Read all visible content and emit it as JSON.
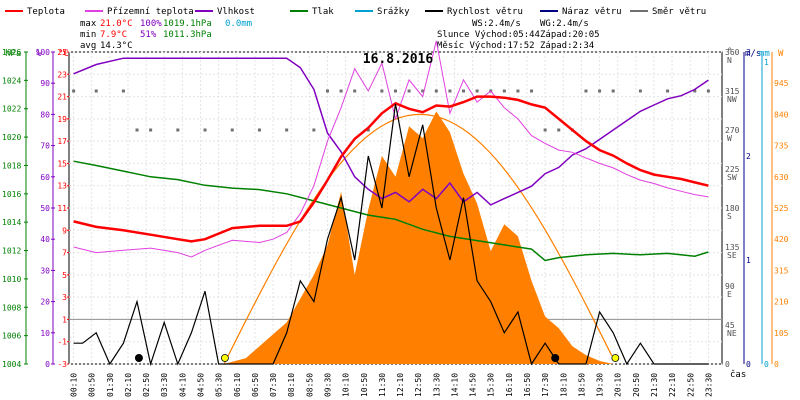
{
  "legend": [
    {
      "label": "Teplota",
      "color": "#ff0000"
    },
    {
      "label": "Přízemní teplota",
      "color": "#e040e0"
    },
    {
      "label": "Vlhkost",
      "color": "#8000c0"
    },
    {
      "label": "Tlak",
      "color": "#008000"
    },
    {
      "label": "Srážky",
      "color": "#00a0d0"
    },
    {
      "label": "Rychlost větru",
      "color": "#000000"
    },
    {
      "label": "Náraz větru",
      "color": "#000080"
    },
    {
      "label": "Směr větru",
      "color": "#707070"
    }
  ],
  "stats": {
    "max": {
      "label": "max",
      "temp": "21.0°C",
      "hum": "100%",
      "press": "1019.1hPa",
      "rain": "0.0mm"
    },
    "min": {
      "label": "min",
      "temp": "7.9°C",
      "hum": "51%",
      "press": "1011.3hPa"
    },
    "avg": {
      "label": "avg",
      "temp": "14.3°C"
    }
  },
  "info": {
    "ws": "WS:2.4m/s",
    "wg": "WG:2.4m/s",
    "slunce": "Slunce Východ:05:44",
    "slunce_zapad": "Západ:20:05",
    "mesic": "Měsíc Východ:17:52",
    "mesic_zapad": "Západ:2:34"
  },
  "date": "16.8.2016",
  "axis_units": {
    "hpa": "hPa",
    "pct": "%",
    "degc": "°C",
    "deg": "°",
    "ms": "m/s",
    "mm": "mm",
    "w": "W",
    "time": "čas"
  },
  "pressure_ticks": [
    "1026",
    "1024",
    "1022",
    "1020",
    "1018",
    "1016",
    "1014",
    "1012",
    "1010",
    "1008",
    "1006",
    "1004"
  ],
  "humidity_ticks": [
    "100",
    "90",
    "80",
    "70",
    "60",
    "50",
    "40",
    "30",
    "20",
    "10",
    "0"
  ],
  "temp_ticks": [
    "25",
    "23",
    "21",
    "19",
    "17",
    "15",
    "13",
    "11",
    "9",
    "7",
    "5",
    "3",
    "1",
    "-1",
    "-3"
  ],
  "direction_ticks": [
    {
      "deg": "360",
      "dir": "N"
    },
    {
      "deg": "315",
      "dir": "NW"
    },
    {
      "deg": "270",
      "dir": "W"
    },
    {
      "deg": "225",
      "dir": "SW"
    },
    {
      "deg": "180",
      "dir": "S"
    },
    {
      "deg": "135",
      "dir": "SE"
    },
    {
      "deg": "90",
      "dir": "E"
    },
    {
      "deg": "45",
      "dir": "NE"
    },
    {
      "deg": "0",
      "dir": ""
    }
  ],
  "wind_ticks": [
    "3",
    "2",
    "1",
    "0"
  ],
  "rain_ticks": [
    "1",
    "0"
  ],
  "solar_ticks": [
    "945",
    "840",
    "735",
    "630",
    "525",
    "420",
    "315",
    "210",
    "105",
    "0"
  ],
  "chart_data": {
    "type": "line",
    "title": "16.8.2016",
    "x_unit": "hours",
    "x_ticks": [
      "00:10",
      "00:50",
      "01:30",
      "02:10",
      "02:50",
      "03:30",
      "04:10",
      "04:50",
      "05:30",
      "06:10",
      "06:50",
      "07:30",
      "08:10",
      "08:50",
      "09:30",
      "10:10",
      "10:50",
      "11:30",
      "12:10",
      "12:50",
      "13:30",
      "14:10",
      "14:50",
      "15:30",
      "16:10",
      "16:50",
      "17:30",
      "18:10",
      "18:50",
      "19:30",
      "20:10",
      "20:50",
      "21:30",
      "22:10",
      "22:50",
      "23:30"
    ],
    "series": [
      {
        "name": "Teplota",
        "color": "#ff0000",
        "axis": "temp",
        "x": [
          0.17,
          1,
          2,
          3,
          4,
          4.5,
          5,
          6,
          7,
          7.5,
          8,
          8.5,
          9,
          9.5,
          10,
          10.5,
          11,
          11.5,
          12,
          12.5,
          13,
          13.5,
          14,
          14.5,
          15,
          15.5,
          16,
          16.5,
          17,
          17.5,
          18,
          18.5,
          19,
          19.5,
          20,
          20.5,
          21,
          21.5,
          22,
          22.5,
          23,
          23.5
        ],
        "y": [
          9.8,
          9.3,
          9.0,
          8.6,
          8.2,
          8.0,
          8.2,
          9.2,
          9.4,
          9.4,
          9.4,
          9.8,
          11.5,
          13.5,
          15.6,
          17.2,
          18.2,
          19.5,
          20.4,
          19.9,
          19.6,
          20.2,
          20.1,
          20.5,
          21.0,
          21.0,
          20.9,
          20.7,
          20.3,
          20.0,
          19.0,
          18.0,
          17.0,
          16.2,
          15.7,
          15.0,
          14.4,
          14.0,
          13.8,
          13.6,
          13.3,
          13.0
        ]
      },
      {
        "name": "Přízemní teplota",
        "color": "#e040e0",
        "axis": "temp",
        "x": [
          0.17,
          1,
          2,
          3,
          4,
          4.5,
          5,
          6,
          7,
          7.5,
          8,
          8.5,
          9,
          9.5,
          10,
          10.5,
          11,
          11.5,
          12,
          12.5,
          13,
          13.5,
          14,
          14.5,
          15,
          15.5,
          16,
          16.5,
          17,
          17.5,
          18,
          18.5,
          19,
          19.5,
          20,
          20.5,
          21,
          21.5,
          22,
          22.5,
          23,
          23.5
        ],
        "y": [
          7.5,
          7.0,
          7.2,
          7.4,
          7.0,
          6.6,
          7.2,
          8.1,
          7.9,
          8.2,
          8.8,
          10.5,
          13.0,
          17.0,
          20.0,
          23.5,
          21.5,
          24.0,
          19.0,
          22.5,
          21.0,
          26.0,
          19.5,
          22.5,
          20.5,
          21.5,
          20.0,
          19.0,
          17.5,
          16.8,
          16.2,
          16.0,
          15.5,
          15.0,
          14.6,
          14.0,
          13.5,
          13.2,
          12.8,
          12.5,
          12.2,
          12.0
        ]
      },
      {
        "name": "Vlhkost",
        "color": "#8000c0",
        "axis": "humidity",
        "x": [
          0.17,
          1,
          2,
          3,
          4,
          5,
          6,
          7,
          7.5,
          8,
          8.5,
          9,
          9.5,
          10,
          10.5,
          11,
          11.5,
          12,
          12.5,
          13,
          13.5,
          14,
          14.5,
          15,
          15.5,
          16,
          16.5,
          17,
          17.5,
          18,
          18.5,
          19,
          19.5,
          20,
          20.5,
          21,
          21.5,
          22,
          22.5,
          23,
          23.5
        ],
        "y": [
          93,
          96,
          98,
          98,
          98,
          98,
          98,
          98,
          98,
          98,
          95,
          88,
          74,
          68,
          60,
          56,
          53,
          55,
          52,
          56,
          53,
          58,
          52,
          55,
          51,
          53,
          55,
          57,
          61,
          63,
          67,
          69,
          72,
          75,
          78,
          81,
          83,
          85,
          86,
          88,
          91
        ]
      },
      {
        "name": "Tlak",
        "color": "#008000",
        "axis": "pressure",
        "x": [
          0.17,
          1,
          2,
          3,
          4,
          5,
          6,
          7,
          8,
          9,
          10,
          11,
          12,
          13,
          14,
          15,
          16,
          17,
          17.5,
          18,
          19,
          20,
          21,
          22,
          23,
          23.5
        ],
        "y": [
          1018.3,
          1018.0,
          1017.6,
          1017.2,
          1017.0,
          1016.6,
          1016.4,
          1016.3,
          1016.0,
          1015.5,
          1015.0,
          1014.5,
          1014.2,
          1013.5,
          1013.0,
          1012.7,
          1012.4,
          1012.1,
          1011.3,
          1011.5,
          1011.7,
          1011.8,
          1011.7,
          1011.8,
          1011.6,
          1011.9
        ]
      },
      {
        "name": "Rychlost větru",
        "color": "#000000",
        "axis": "wind",
        "x": [
          0.17,
          0.5,
          1,
          1.5,
          2,
          2.5,
          3,
          3.5,
          4,
          4.5,
          5,
          5.5,
          6,
          6.5,
          7,
          7.5,
          8,
          8.5,
          9,
          9.5,
          10,
          10.5,
          11,
          11.5,
          12,
          12.5,
          13,
          13.5,
          14,
          14.5,
          15,
          15.5,
          16,
          16.5,
          17,
          17.5,
          18,
          18.5,
          19,
          19.5,
          20,
          20.5,
          21,
          21.5,
          22,
          22.5,
          23,
          23.5
        ],
        "y": [
          0.2,
          0.2,
          0.3,
          0,
          0.2,
          0.6,
          0,
          0.4,
          0,
          0.3,
          0.7,
          0,
          0,
          0,
          0,
          0,
          0.3,
          0.8,
          0.6,
          1.2,
          1.6,
          1.0,
          2.0,
          1.5,
          2.5,
          1.8,
          2.3,
          1.5,
          1.0,
          1.6,
          0.8,
          0.6,
          0.3,
          0.5,
          0,
          0.2,
          0,
          0,
          0,
          0.5,
          0.3,
          0,
          0.2,
          0,
          0,
          0,
          0,
          0
        ]
      },
      {
        "name": "Směr větru",
        "color": "#707070",
        "axis": "direction",
        "x": [
          0.17,
          1,
          2,
          2.5,
          3,
          4,
          5,
          6,
          7,
          8,
          9,
          9.5,
          10,
          10.5,
          11,
          11.5,
          12,
          12.5,
          13,
          13.5,
          14,
          14.5,
          15,
          15.5,
          16,
          16.5,
          17,
          17.5,
          18,
          18.5,
          19,
          19.5,
          20,
          21,
          22,
          23,
          23.5
        ],
        "y": [
          315,
          315,
          315,
          270,
          270,
          270,
          270,
          270,
          270,
          270,
          270,
          315,
          315,
          315,
          270,
          315,
          315,
          315,
          315,
          315,
          315,
          315,
          315,
          315,
          315,
          315,
          315,
          270,
          270,
          270,
          315,
          315,
          315,
          315,
          315,
          315,
          315
        ]
      },
      {
        "name": "Solar",
        "color": "#ff8000",
        "axis": "solar",
        "x": [
          5.7,
          6.5,
          7,
          7.5,
          8,
          8.5,
          9,
          9.5,
          10,
          10.5,
          11,
          11.5,
          12,
          12.5,
          13,
          13.5,
          14,
          14.5,
          15,
          15.5,
          16,
          16.5,
          17,
          17.5,
          18,
          18.5,
          19,
          19.5,
          20
        ],
        "y": [
          0,
          20,
          60,
          100,
          140,
          220,
          300,
          400,
          580,
          300,
          520,
          700,
          630,
          800,
          760,
          850,
          780,
          640,
          540,
          380,
          470,
          430,
          280,
          160,
          120,
          60,
          30,
          10,
          0
        ]
      }
    ],
    "ylim_temp": [
      -3,
      25
    ],
    "ylim_humidity": [
      0,
      100
    ],
    "ylim_pressure": [
      1004,
      1026
    ],
    "ylim_wind": [
      0,
      3
    ],
    "ylim_direction": [
      0,
      360
    ],
    "ylim_solar": [
      0,
      945
    ],
    "grid": true
  }
}
